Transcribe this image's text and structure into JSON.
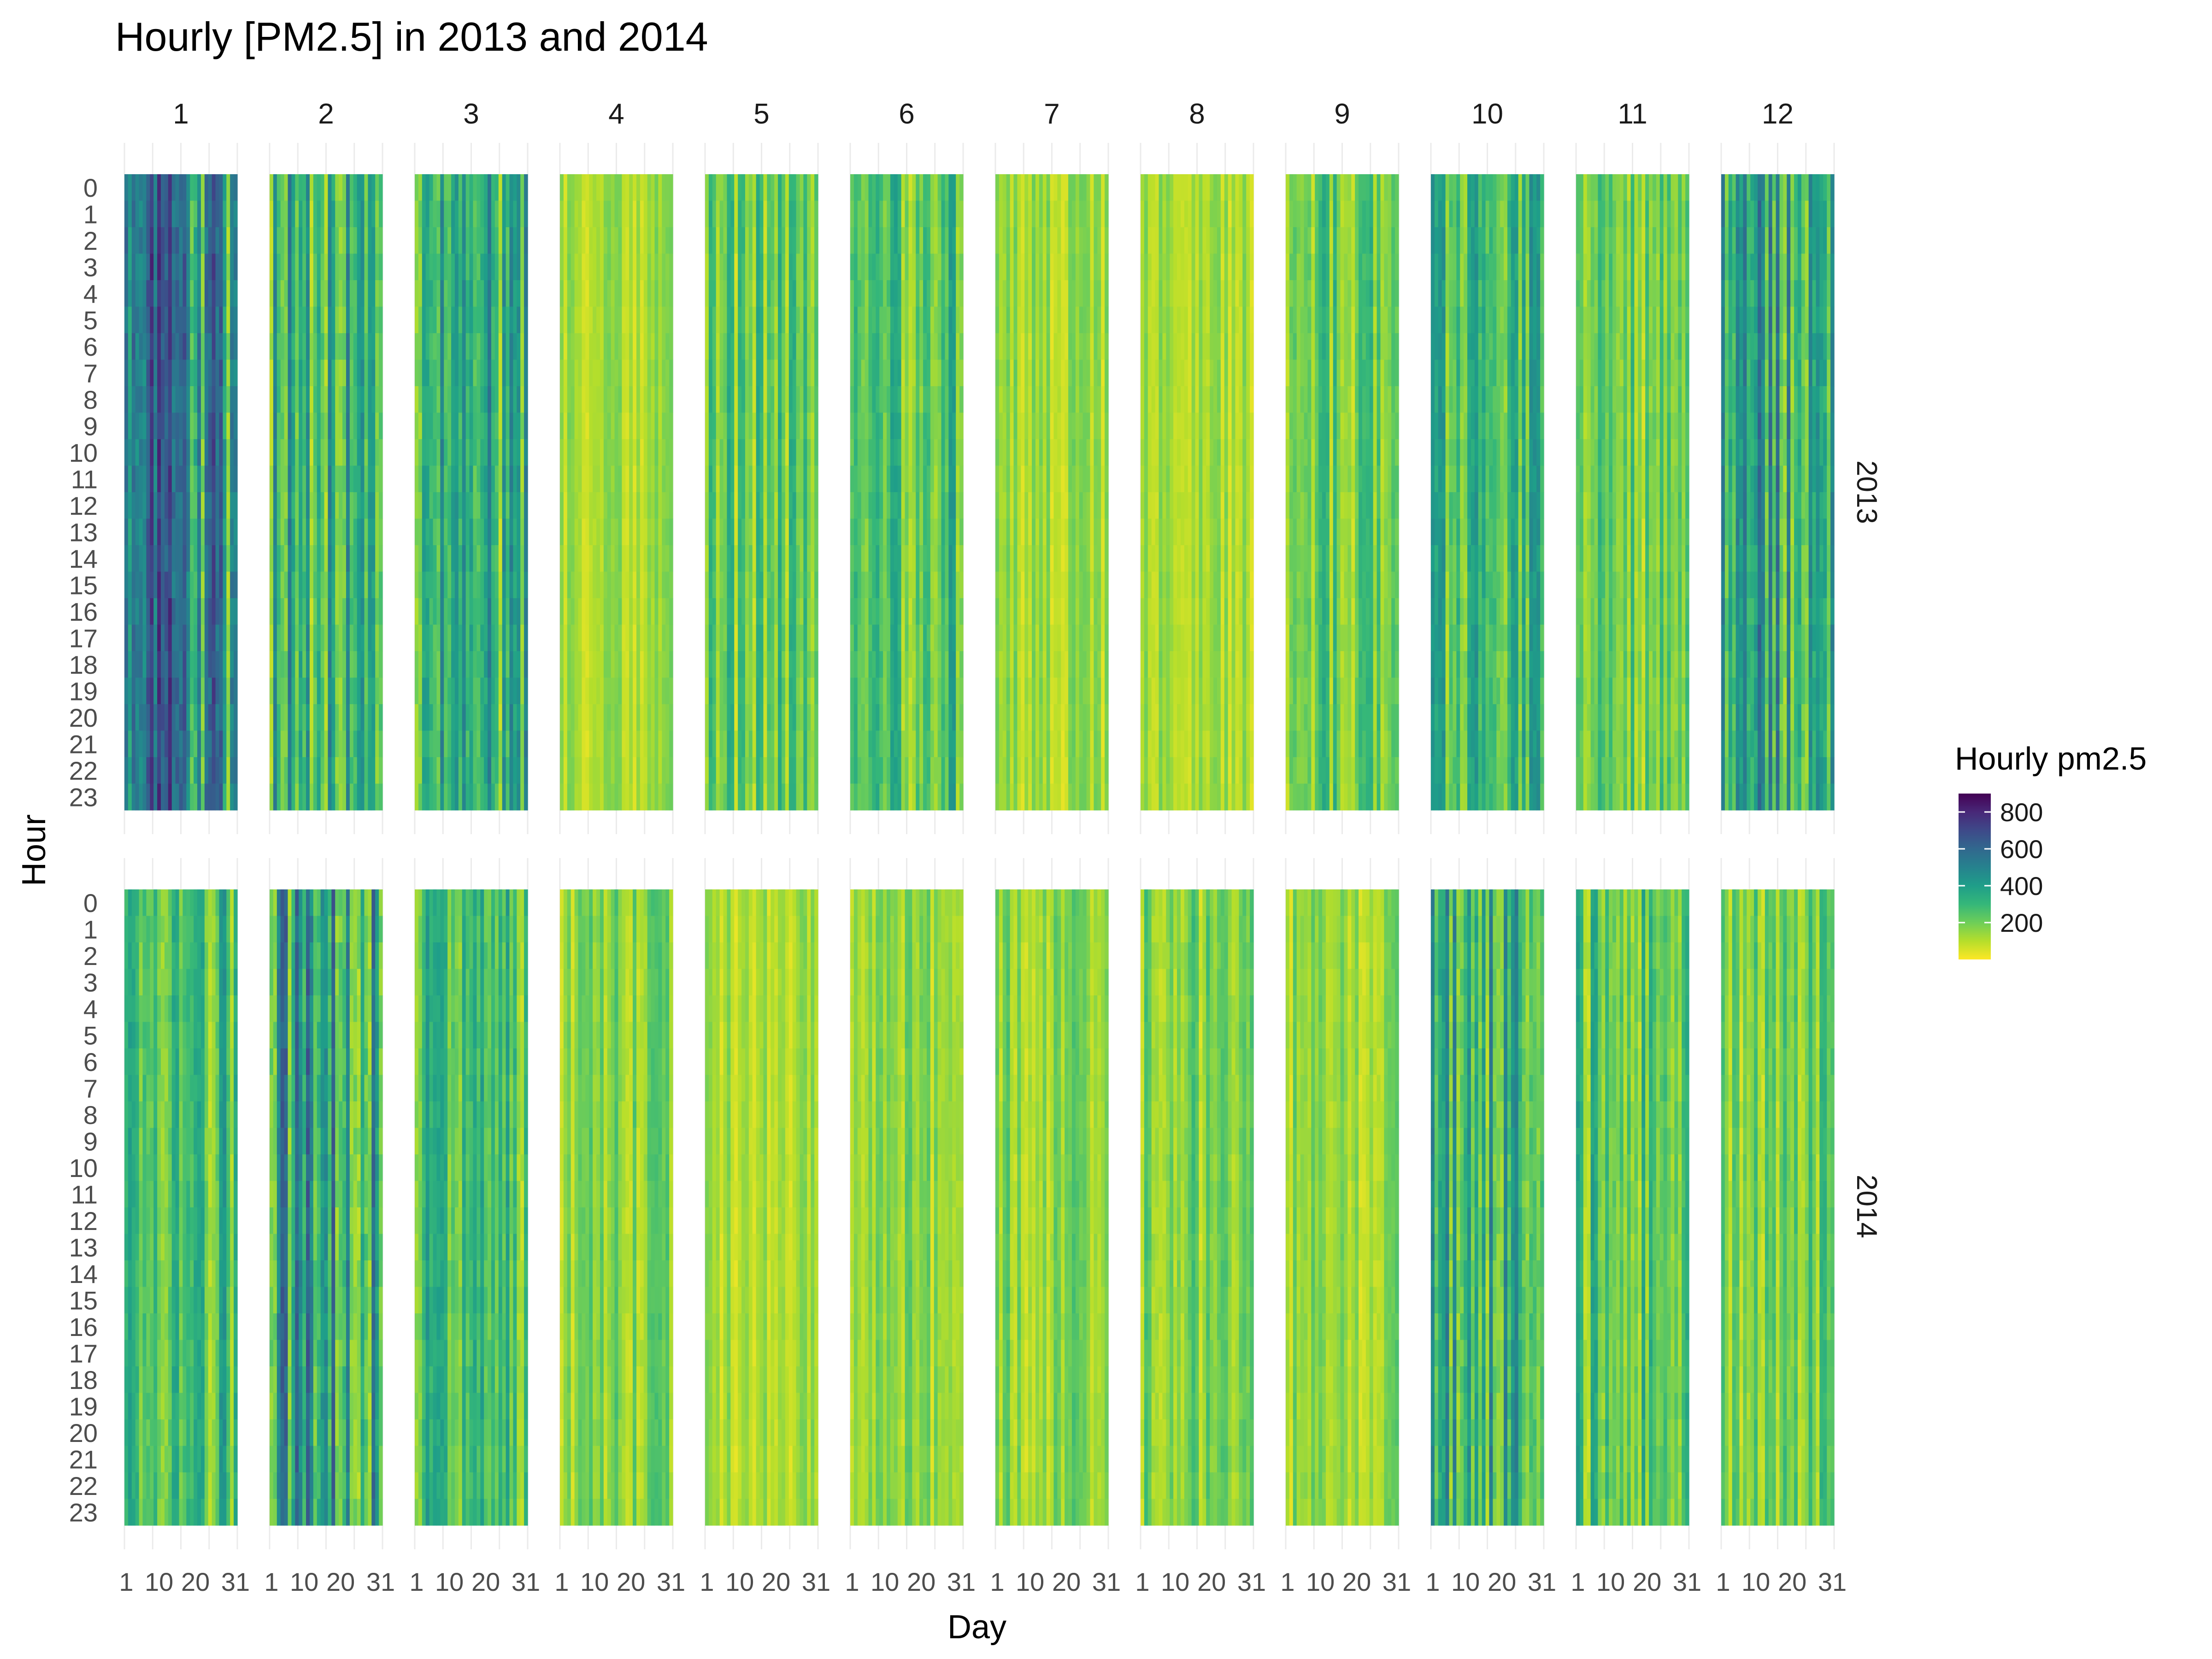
{
  "chart_data": {
    "type": "heatmap",
    "title": "Hourly [PM2.5] in 2013 and 2014",
    "xlabel": "Day",
    "ylabel": "Hour",
    "facet_columns": [
      "1",
      "2",
      "3",
      "4",
      "5",
      "6",
      "7",
      "8",
      "9",
      "10",
      "11",
      "12"
    ],
    "facet_rows": [
      "2013",
      "2014"
    ],
    "x_ticks": [
      "1",
      "10",
      "20",
      "31"
    ],
    "y_ticks": [
      "0",
      "1",
      "2",
      "3",
      "4",
      "5",
      "6",
      "7",
      "8",
      "9",
      "10",
      "11",
      "12",
      "13",
      "14",
      "15",
      "16",
      "17",
      "18",
      "19",
      "20",
      "21",
      "22",
      "23"
    ],
    "legend": {
      "title": "Hourly pm2.5",
      "ticks": [
        "800",
        "600",
        "400",
        "200"
      ],
      "range": [
        0,
        900
      ],
      "colors": [
        "#fde725",
        "#b5de2b",
        "#6ece58",
        "#35b779",
        "#1f9e89",
        "#26828e",
        "#31688e",
        "#3e4989",
        "#482878",
        "#440154"
      ]
    },
    "panel_mean_values": {
      "2013": [
        430,
        300,
        300,
        110,
        200,
        230,
        120,
        110,
        200,
        280,
        180,
        330
      ],
      "2014": [
        250,
        380,
        240,
        150,
        110,
        140,
        150,
        180,
        140,
        300,
        230,
        180
      ]
    },
    "grid": true
  }
}
